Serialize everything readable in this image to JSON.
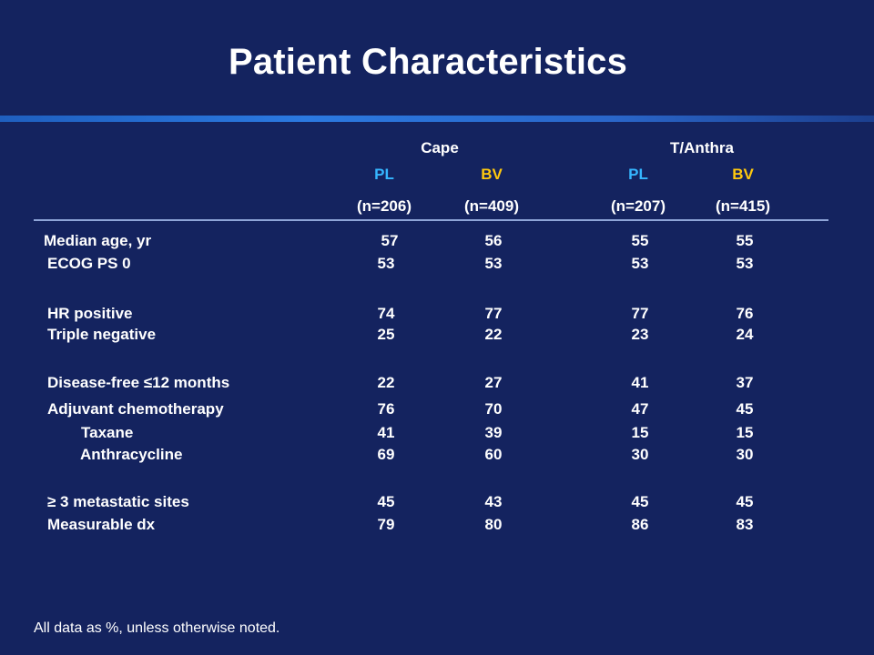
{
  "title": "Patient Characteristics",
  "groups": [
    {
      "label": "Cape"
    },
    {
      "label": "T/Anthra"
    }
  ],
  "arms": [
    {
      "label": "PL",
      "n": "(n=206)"
    },
    {
      "label": "BV",
      "n": "(n=409)"
    },
    {
      "label": "PL",
      "n": "(n=207)"
    },
    {
      "label": "BV",
      "n": "(n=415)"
    }
  ],
  "rows": [
    {
      "label": "Median age, yr",
      "values": [
        "57",
        "56",
        "55",
        "55"
      ]
    },
    {
      "label": "ECOG PS 0",
      "values": [
        "53",
        "53",
        "53",
        "53"
      ]
    },
    {
      "label": "HR positive",
      "values": [
        "74",
        "77",
        "77",
        "76"
      ]
    },
    {
      "label": "Triple negative",
      "values": [
        "25",
        "22",
        "23",
        "24"
      ]
    },
    {
      "label": "Disease-free ≤12 months",
      "values": [
        "22",
        "27",
        "41",
        "37"
      ]
    },
    {
      "label": "Adjuvant chemotherapy",
      "values": [
        "76",
        "70",
        "47",
        "45"
      ]
    },
    {
      "label": "Taxane",
      "values": [
        "41",
        "39",
        "15",
        "15"
      ]
    },
    {
      "label": "Anthracycline",
      "values": [
        "69",
        "60",
        "30",
        "30"
      ]
    },
    {
      "label": "≥ 3 metastatic sites",
      "values": [
        "45",
        "43",
        "45",
        "45"
      ]
    },
    {
      "label": "Measurable dx",
      "values": [
        "79",
        "80",
        "86",
        "83"
      ]
    }
  ],
  "footnote": "All data as %, unless otherwise noted.",
  "colors": {
    "background": "#14235f",
    "pl": "#35b6ff",
    "bv": "#ffc90e",
    "text": "#ffffff"
  }
}
